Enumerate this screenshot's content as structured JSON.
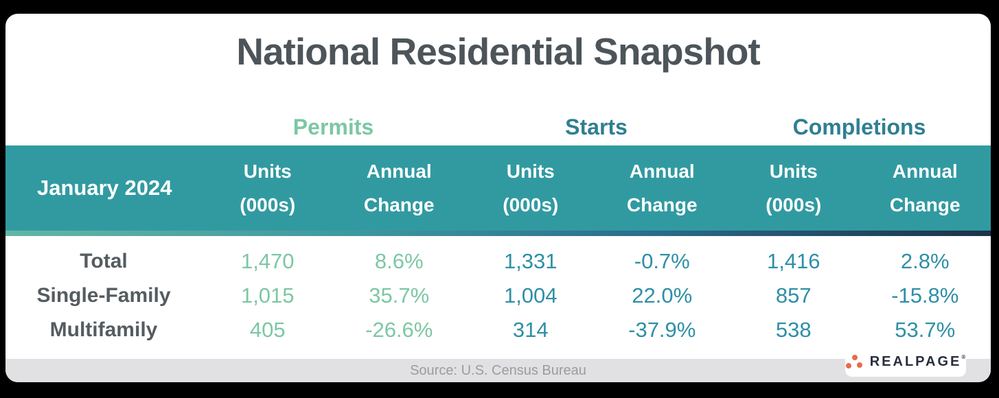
{
  "title": "National Residential Snapshot",
  "colors": {
    "band_teal": "#319aa1",
    "seafoam_accent": "#7cc7a4",
    "teal_text": "#2e8fa6",
    "group_heading_teal": "#2f7f92",
    "title_gray": "#4d555a",
    "gradient_navy": "#1c3248",
    "logo_orange": "#e96a4c",
    "logo_navy": "#262e3b",
    "footer_gray": "#e1e1e3"
  },
  "table": {
    "period_label": "January 2024",
    "groups": [
      "Permits",
      "Starts",
      "Completions"
    ],
    "col_headers": [
      {
        "line1": "Units",
        "line2": "(000s)"
      },
      {
        "line1": "Annual",
        "line2": "Change"
      }
    ],
    "rows": [
      {
        "label": "Total",
        "permits_units": "1,470",
        "permits_change": "8.6%",
        "starts_units": "1,331",
        "starts_change": "-0.7%",
        "completions_units": "1,416",
        "completions_change": "2.8%"
      },
      {
        "label": "Single-Family",
        "permits_units": "1,015",
        "permits_change": "35.7%",
        "starts_units": "1,004",
        "starts_change": "22.0%",
        "completions_units": "857",
        "completions_change": "-15.8%"
      },
      {
        "label": "Multifamily",
        "permits_units": "405",
        "permits_change": "-26.6%",
        "starts_units": "314",
        "starts_change": "-37.9%",
        "completions_units": "538",
        "completions_change": "53.7%"
      }
    ]
  },
  "footer": {
    "source_text": "Source: U.S. Census Bureau"
  },
  "logo": {
    "text": "REALPAGE",
    "mark": "®"
  },
  "chart_data": {
    "type": "table",
    "title": "National Residential Snapshot",
    "period": "January 2024",
    "column_groups": [
      "Permits",
      "Starts",
      "Completions"
    ],
    "columns_per_group": [
      "Units (000s)",
      "Annual Change"
    ],
    "row_categories": [
      "Total",
      "Single-Family",
      "Multifamily"
    ],
    "series": [
      {
        "name": "Permits Units (000s)",
        "values": [
          1470,
          1015,
          405
        ]
      },
      {
        "name": "Permits Annual Change %",
        "values": [
          8.6,
          35.7,
          -26.6
        ]
      },
      {
        "name": "Starts Units (000s)",
        "values": [
          1331,
          1004,
          314
        ]
      },
      {
        "name": "Starts Annual Change %",
        "values": [
          -0.7,
          22.0,
          -37.9
        ]
      },
      {
        "name": "Completions Units (000s)",
        "values": [
          1416,
          857,
          538
        ]
      },
      {
        "name": "Completions Annual Change %",
        "values": [
          2.8,
          -15.8,
          53.7
        ]
      }
    ],
    "source": "Source: U.S. Census Bureau",
    "legend_position": "none",
    "grid": false
  }
}
